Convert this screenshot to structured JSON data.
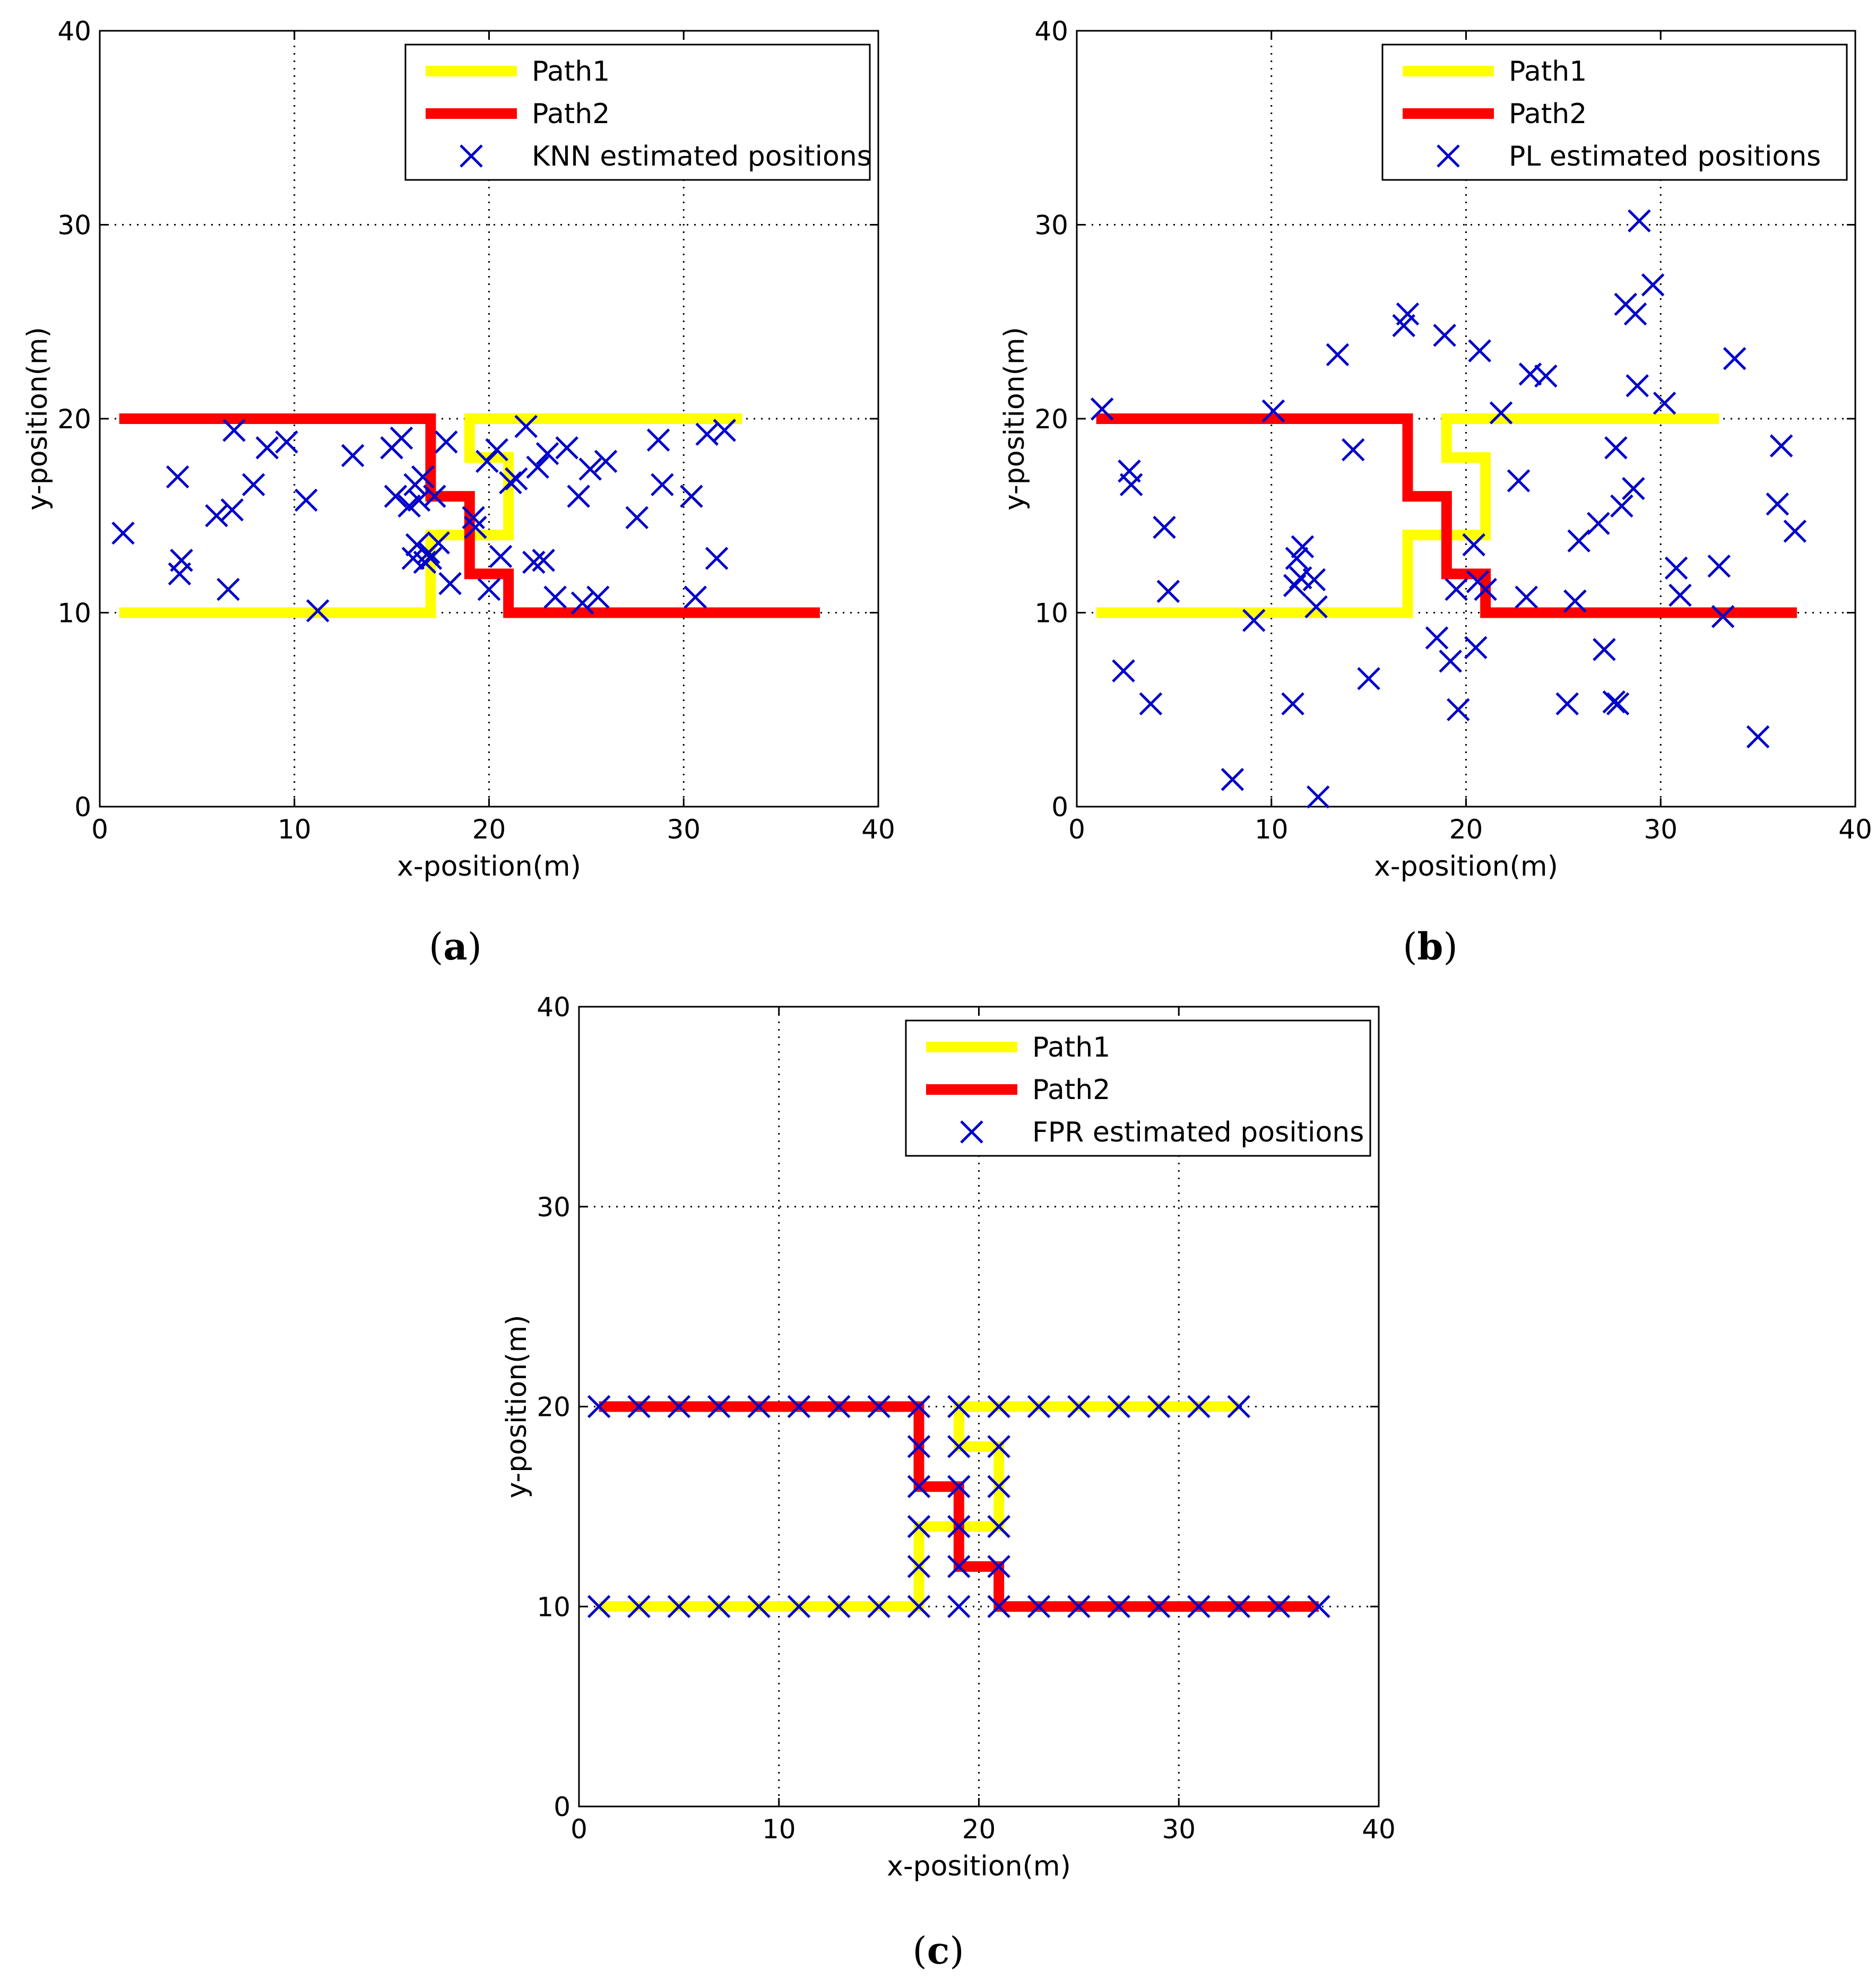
{
  "colors": {
    "path1": "#ffff00",
    "path2": "#ff0000",
    "marker": "#0000cc",
    "grid": "#000000",
    "frame": "#000000"
  },
  "chart_data": [
    {
      "type": "scatter",
      "caption_letter": "a",
      "xlabel": "x-position(m)",
      "ylabel": "y-position(m)",
      "xlim": [
        0,
        40
      ],
      "ylim": [
        0,
        40
      ],
      "xticks": [
        "0",
        "10",
        "20",
        "30",
        "40"
      ],
      "yticks": [
        "0",
        "10",
        "20",
        "30",
        "40"
      ],
      "grid": true,
      "legend_position": "top-right",
      "series": [
        {
          "name": "Path1",
          "kind": "line",
          "x": [
            1,
            17,
            17,
            21,
            21,
            19,
            19,
            33
          ],
          "y": [
            10,
            10,
            14,
            14,
            18,
            18,
            20,
            20
          ]
        },
        {
          "name": "Path2",
          "kind": "line",
          "x": [
            1,
            17,
            17,
            19,
            19,
            21,
            21,
            37
          ],
          "y": [
            20,
            20,
            16,
            16,
            12,
            12,
            10,
            10
          ]
        },
        {
          "name": "KNN estimated positions",
          "kind": "marker",
          "x": [
            1.2,
            4,
            4.1,
            4.2,
            6,
            6.6,
            6.8,
            6.9,
            7.9,
            8.6,
            9.6,
            10.6,
            11.2,
            13,
            15,
            15.2,
            15.5,
            15.9,
            16.1,
            16.2,
            16.3,
            16.4,
            16.6,
            16.7,
            16.9,
            17,
            17.2,
            17.4,
            17.8,
            18,
            19.2,
            19.3,
            19.9,
            20,
            20.4,
            20.6,
            21.1,
            21.4,
            21.9,
            22.3,
            22.5,
            22.8,
            23,
            23.4,
            24,
            24.6,
            24.8,
            25.2,
            25.6,
            26,
            27.6,
            28.7,
            28.9,
            30.4,
            30.6,
            31.2,
            31.7,
            32.1
          ],
          "y": [
            14.1,
            17,
            12,
            12.7,
            15,
            11.2,
            15.3,
            19.4,
            16.6,
            18.5,
            18.8,
            15.8,
            10.1,
            18.1,
            18.5,
            16,
            19,
            15.5,
            12.8,
            16.6,
            13.5,
            15.8,
            17,
            12.6,
            13.1,
            12.8,
            16,
            13.6,
            18.8,
            11.5,
            14.9,
            14.4,
            17.8,
            11.2,
            18.4,
            12.9,
            16.7,
            16.9,
            19.6,
            12.6,
            17.5,
            12.7,
            18.2,
            10.8,
            18.5,
            16,
            10.5,
            17.4,
            10.8,
            17.8,
            14.9,
            18.9,
            16.6,
            16,
            10.8,
            19.2,
            12.8,
            19.4
          ]
        }
      ]
    },
    {
      "type": "scatter",
      "caption_letter": "b",
      "xlabel": "x-position(m)",
      "ylabel": "y-position(m)",
      "xlim": [
        0,
        40
      ],
      "ylim": [
        0,
        40
      ],
      "xticks": [
        "0",
        "10",
        "20",
        "30",
        "40"
      ],
      "yticks": [
        "0",
        "10",
        "20",
        "30",
        "40"
      ],
      "grid": true,
      "legend_position": "top-right",
      "series": [
        {
          "name": "Path1",
          "kind": "line",
          "x": [
            1,
            17,
            17,
            21,
            21,
            19,
            19,
            33
          ],
          "y": [
            10,
            10,
            14,
            14,
            18,
            18,
            20,
            20
          ]
        },
        {
          "name": "Path2",
          "kind": "line",
          "x": [
            1,
            17,
            17,
            19,
            19,
            21,
            21,
            37
          ],
          "y": [
            20,
            20,
            16,
            16,
            12,
            12,
            10,
            10
          ]
        },
        {
          "name": "PL estimated positions",
          "kind": "marker",
          "x": [
            1.3,
            2.4,
            2.7,
            2.8,
            3.8,
            4.5,
            4.7,
            8,
            9.1,
            10.1,
            11.1,
            11.2,
            11.3,
            11.5,
            11.6,
            12.2,
            12.3,
            12.4,
            13.4,
            14.2,
            15,
            16.8,
            17,
            18.5,
            18.9,
            19.2,
            19.5,
            19.6,
            20.4,
            20.5,
            20.6,
            20.7,
            21,
            21.8,
            22.7,
            23.1,
            23.3,
            24.1,
            25.2,
            25.6,
            25.8,
            26.8,
            27.1,
            27.6,
            27.7,
            27.8,
            28,
            28.2,
            28.6,
            28.7,
            28.8,
            28.9,
            29.6,
            30.2,
            30.8,
            31,
            33,
            33.2,
            33.8,
            35,
            36,
            36.2,
            36.9
          ],
          "y": [
            20.5,
            7,
            17.3,
            16.6,
            5.3,
            14.4,
            11.1,
            1.4,
            9.6,
            20.4,
            5.3,
            11.4,
            12.8,
            11.8,
            13.4,
            11.7,
            10.3,
            0.5,
            23.3,
            18.4,
            6.6,
            24.8,
            25.4,
            8.7,
            24.3,
            7.5,
            11.2,
            5,
            13.5,
            8.2,
            11.6,
            23.5,
            11.2,
            20.3,
            16.8,
            10.8,
            22.3,
            22.2,
            5.3,
            10.6,
            13.7,
            14.6,
            8.1,
            5.4,
            18.5,
            5.3,
            15.5,
            25.9,
            16.4,
            25.4,
            21.7,
            30.2,
            26.9,
            20.8,
            12.3,
            10.9,
            12.4,
            9.8,
            23.1,
            3.6,
            15.6,
            18.6,
            14.2
          ]
        }
      ]
    },
    {
      "type": "scatter",
      "caption_letter": "c",
      "xlabel": "x-position(m)",
      "ylabel": "y-position(m)",
      "xlim": [
        0,
        40
      ],
      "ylim": [
        0,
        40
      ],
      "xticks": [
        "0",
        "10",
        "20",
        "30",
        "40"
      ],
      "yticks": [
        "0",
        "10",
        "20",
        "30",
        "40"
      ],
      "grid": true,
      "legend_position": "top-right",
      "series": [
        {
          "name": "Path1",
          "kind": "line",
          "x": [
            1,
            17,
            17,
            21,
            21,
            19,
            19,
            33
          ],
          "y": [
            10,
            10,
            14,
            14,
            18,
            18,
            20,
            20
          ]
        },
        {
          "name": "Path2",
          "kind": "line",
          "x": [
            1,
            17,
            17,
            19,
            19,
            21,
            21,
            37
          ],
          "y": [
            20,
            20,
            16,
            16,
            12,
            12,
            10,
            10
          ]
        },
        {
          "name": "FPR estimated positions",
          "kind": "marker",
          "x": [
            1,
            3,
            5,
            7,
            9,
            11,
            13,
            15,
            17,
            1,
            3,
            5,
            7,
            9,
            11,
            13,
            15,
            17,
            17,
            17,
            17,
            17,
            19,
            19,
            19,
            19,
            19,
            19,
            21,
            21,
            21,
            21,
            21,
            21,
            23,
            25,
            27,
            29,
            31,
            33,
            23,
            25,
            27,
            29,
            31,
            33,
            35,
            37
          ],
          "y": [
            10,
            10,
            10,
            10,
            10,
            10,
            10,
            10,
            10,
            20,
            20,
            20,
            20,
            20,
            20,
            20,
            20,
            20,
            12,
            14,
            16,
            18,
            10,
            12,
            14,
            16,
            18,
            20,
            10,
            12,
            14,
            16,
            18,
            20,
            20,
            20,
            20,
            20,
            20,
            20,
            10,
            10,
            10,
            10,
            10,
            10,
            10,
            10
          ]
        }
      ]
    }
  ]
}
